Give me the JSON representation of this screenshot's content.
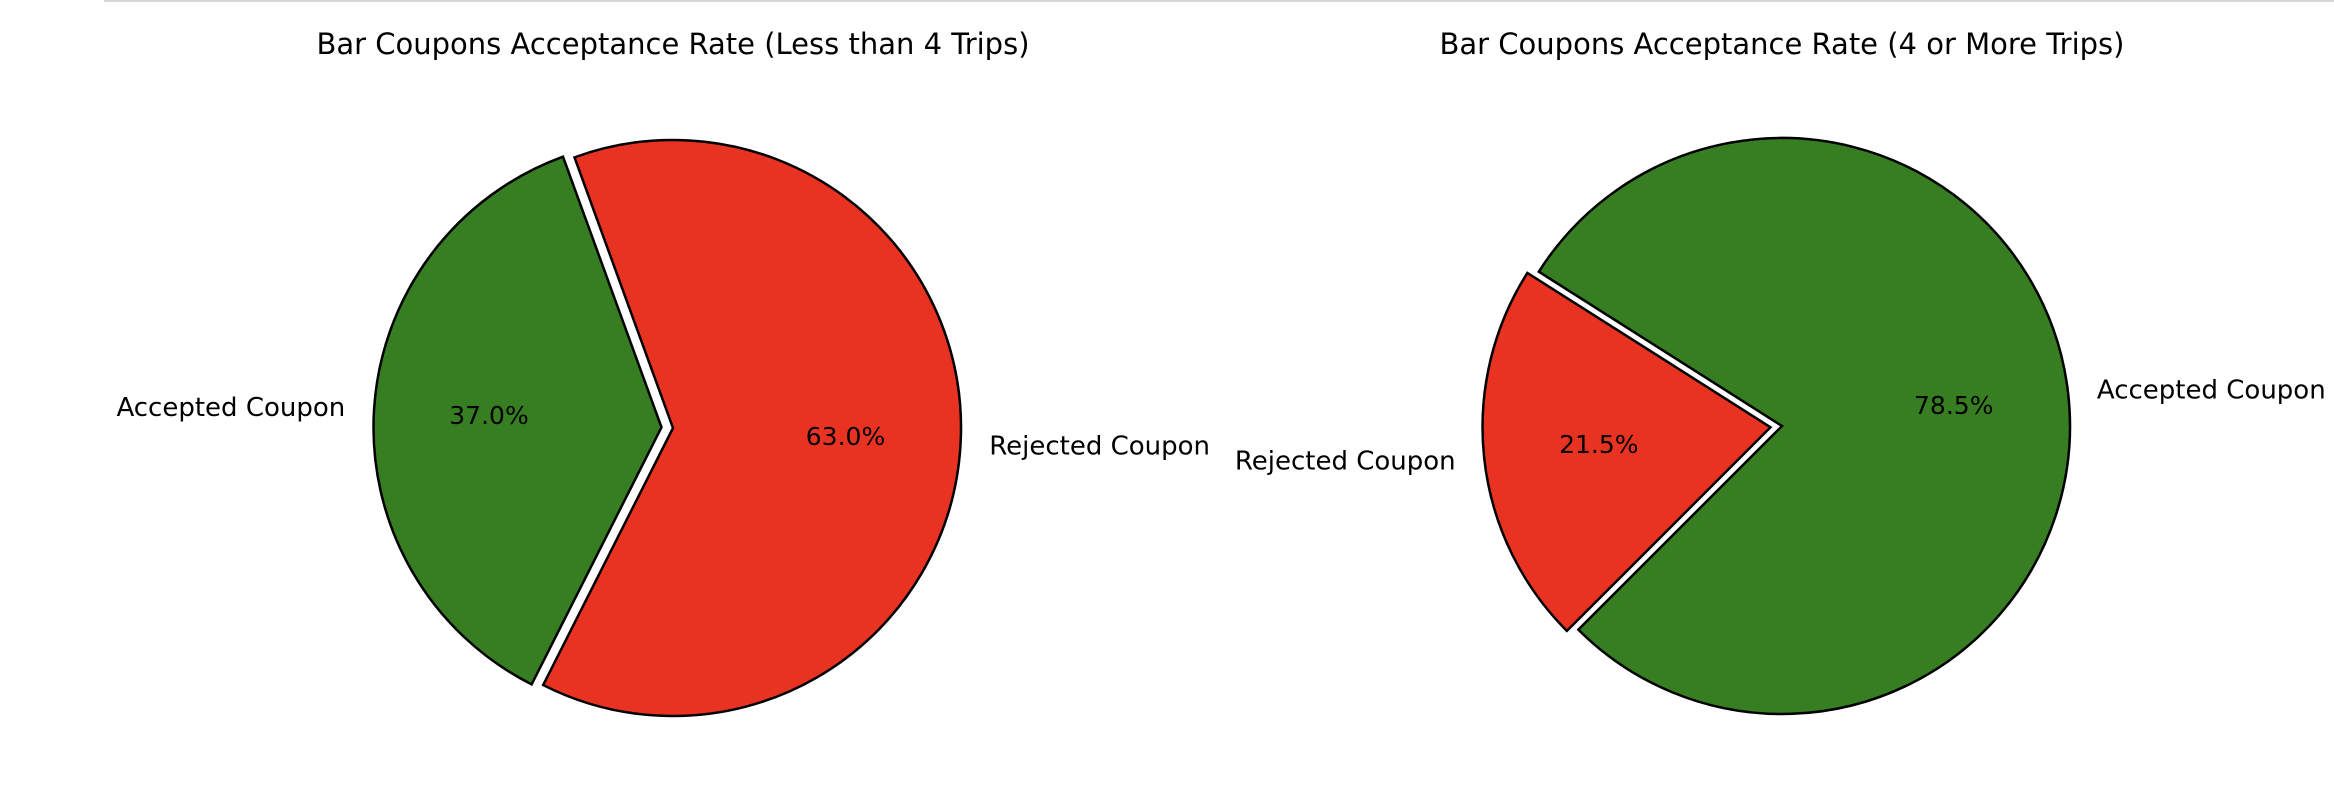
{
  "chart_data": [
    {
      "type": "pie",
      "title": "Bar Coupons Acceptance Rate (Less than 4 Trips)",
      "slices": [
        {
          "label": "Accepted Coupon",
          "value": 37.0,
          "pct_text": "37.0%",
          "color": "#367e21",
          "exploded": true
        },
        {
          "label": "Rejected Coupon",
          "value": 63.0,
          "pct_text": "63.0%",
          "color": "#e83323",
          "exploded": false
        }
      ]
    },
    {
      "type": "pie",
      "title": "Bar Coupons Acceptance Rate (4 or More Trips)",
      "slices": [
        {
          "label": "Accepted Coupon",
          "value": 78.5,
          "pct_text": "78.5%",
          "color": "#367e21",
          "exploded": false
        },
        {
          "label": "Rejected Coupon",
          "value": 21.5,
          "pct_text": "21.5%",
          "color": "#e83323",
          "exploded": true
        }
      ]
    }
  ]
}
